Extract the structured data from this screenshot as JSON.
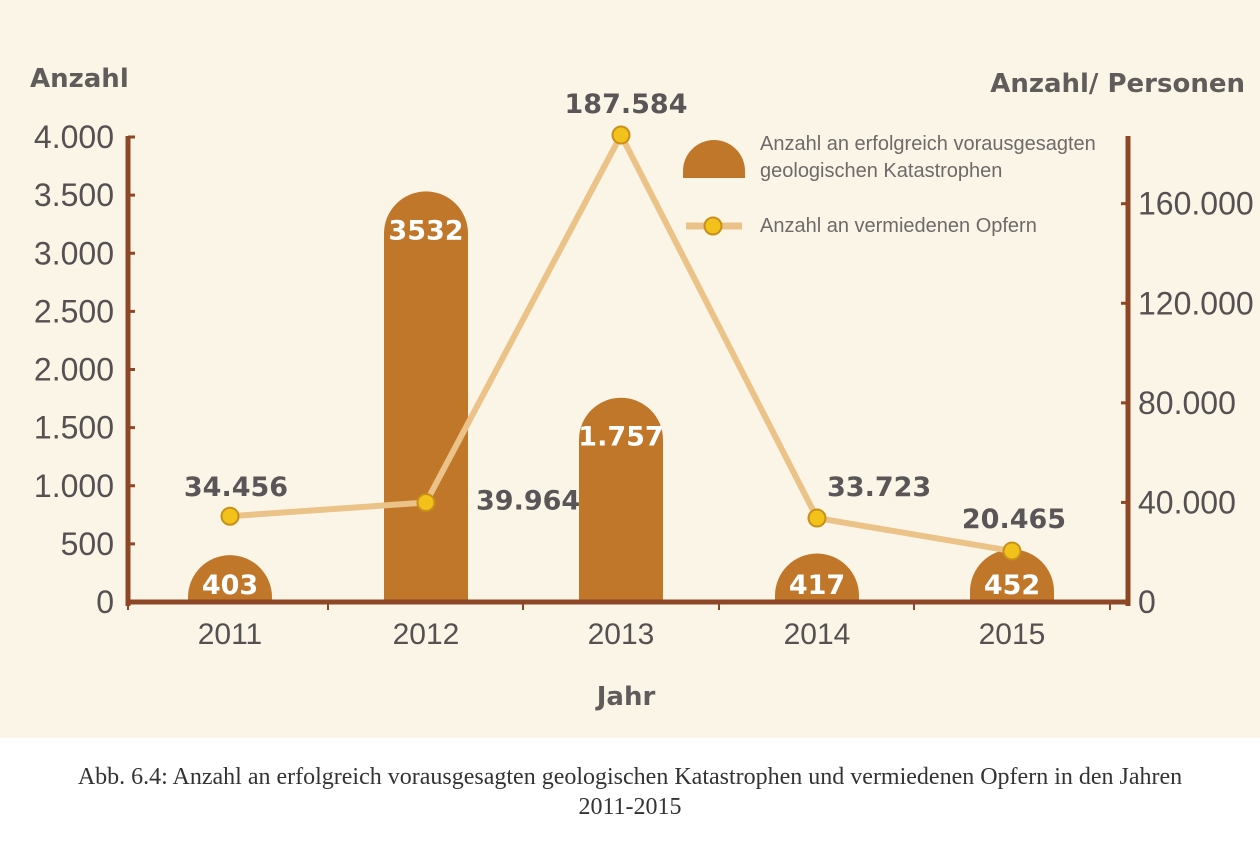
{
  "chart_data": {
    "type": "bar",
    "categories": [
      "2011",
      "2012",
      "2013",
      "2014",
      "2015"
    ],
    "series": [
      {
        "name": "Anzahl an erfolgreich vorausgesagten geologischen Katastrophen",
        "type": "bar",
        "axis": "left",
        "values": [
          403,
          3532,
          1757,
          417,
          452
        ],
        "labels": [
          "403",
          "3532",
          "1.757",
          "417",
          "452"
        ],
        "color": "#c0772a"
      },
      {
        "name": "Anzahl an vermiedenen Opfern",
        "type": "line",
        "axis": "right",
        "values": [
          34456,
          39964,
          187584,
          33723,
          20465
        ],
        "labels": [
          "34.456",
          "39.964",
          "187.584",
          "33.723",
          "20.465"
        ],
        "color": "#ebc287",
        "marker_color": "#f2c21a"
      }
    ],
    "y_left": {
      "label": "Anzahl",
      "ylim": [
        0,
        4000
      ],
      "ticks": [
        0,
        500,
        1000,
        1500,
        2000,
        2500,
        3000,
        3500,
        4000
      ],
      "tick_labels": [
        "0",
        "500",
        "1.000",
        "1.500",
        "2.000",
        "2.500",
        "3.000",
        "3.500",
        "4.000"
      ]
    },
    "y_right": {
      "label": "Anzahl/ Personen",
      "ylim": [
        0,
        188000
      ],
      "ticks": [
        0,
        40000,
        80000,
        120000,
        160000
      ],
      "tick_labels": [
        "0",
        "40.000",
        "80.000",
        "120.000",
        "160.000"
      ]
    },
    "xlabel": "Jahr",
    "axis_color": "#8d4626",
    "legend_position": "top-right",
    "grid": false
  },
  "caption": {
    "line1": "Abb. 6.4: Anzahl an erfolgreich vorausgesagten geologischen Katastrophen und vermiedenen Opfern in den Jahren",
    "line2": "2011-2015"
  },
  "legend": {
    "bar_line1": "Anzahl an erfolgreich vorausgesagten",
    "bar_line2": "geologischen Katastrophen",
    "line_label": "Anzahl an vermiedenen Opfern"
  }
}
